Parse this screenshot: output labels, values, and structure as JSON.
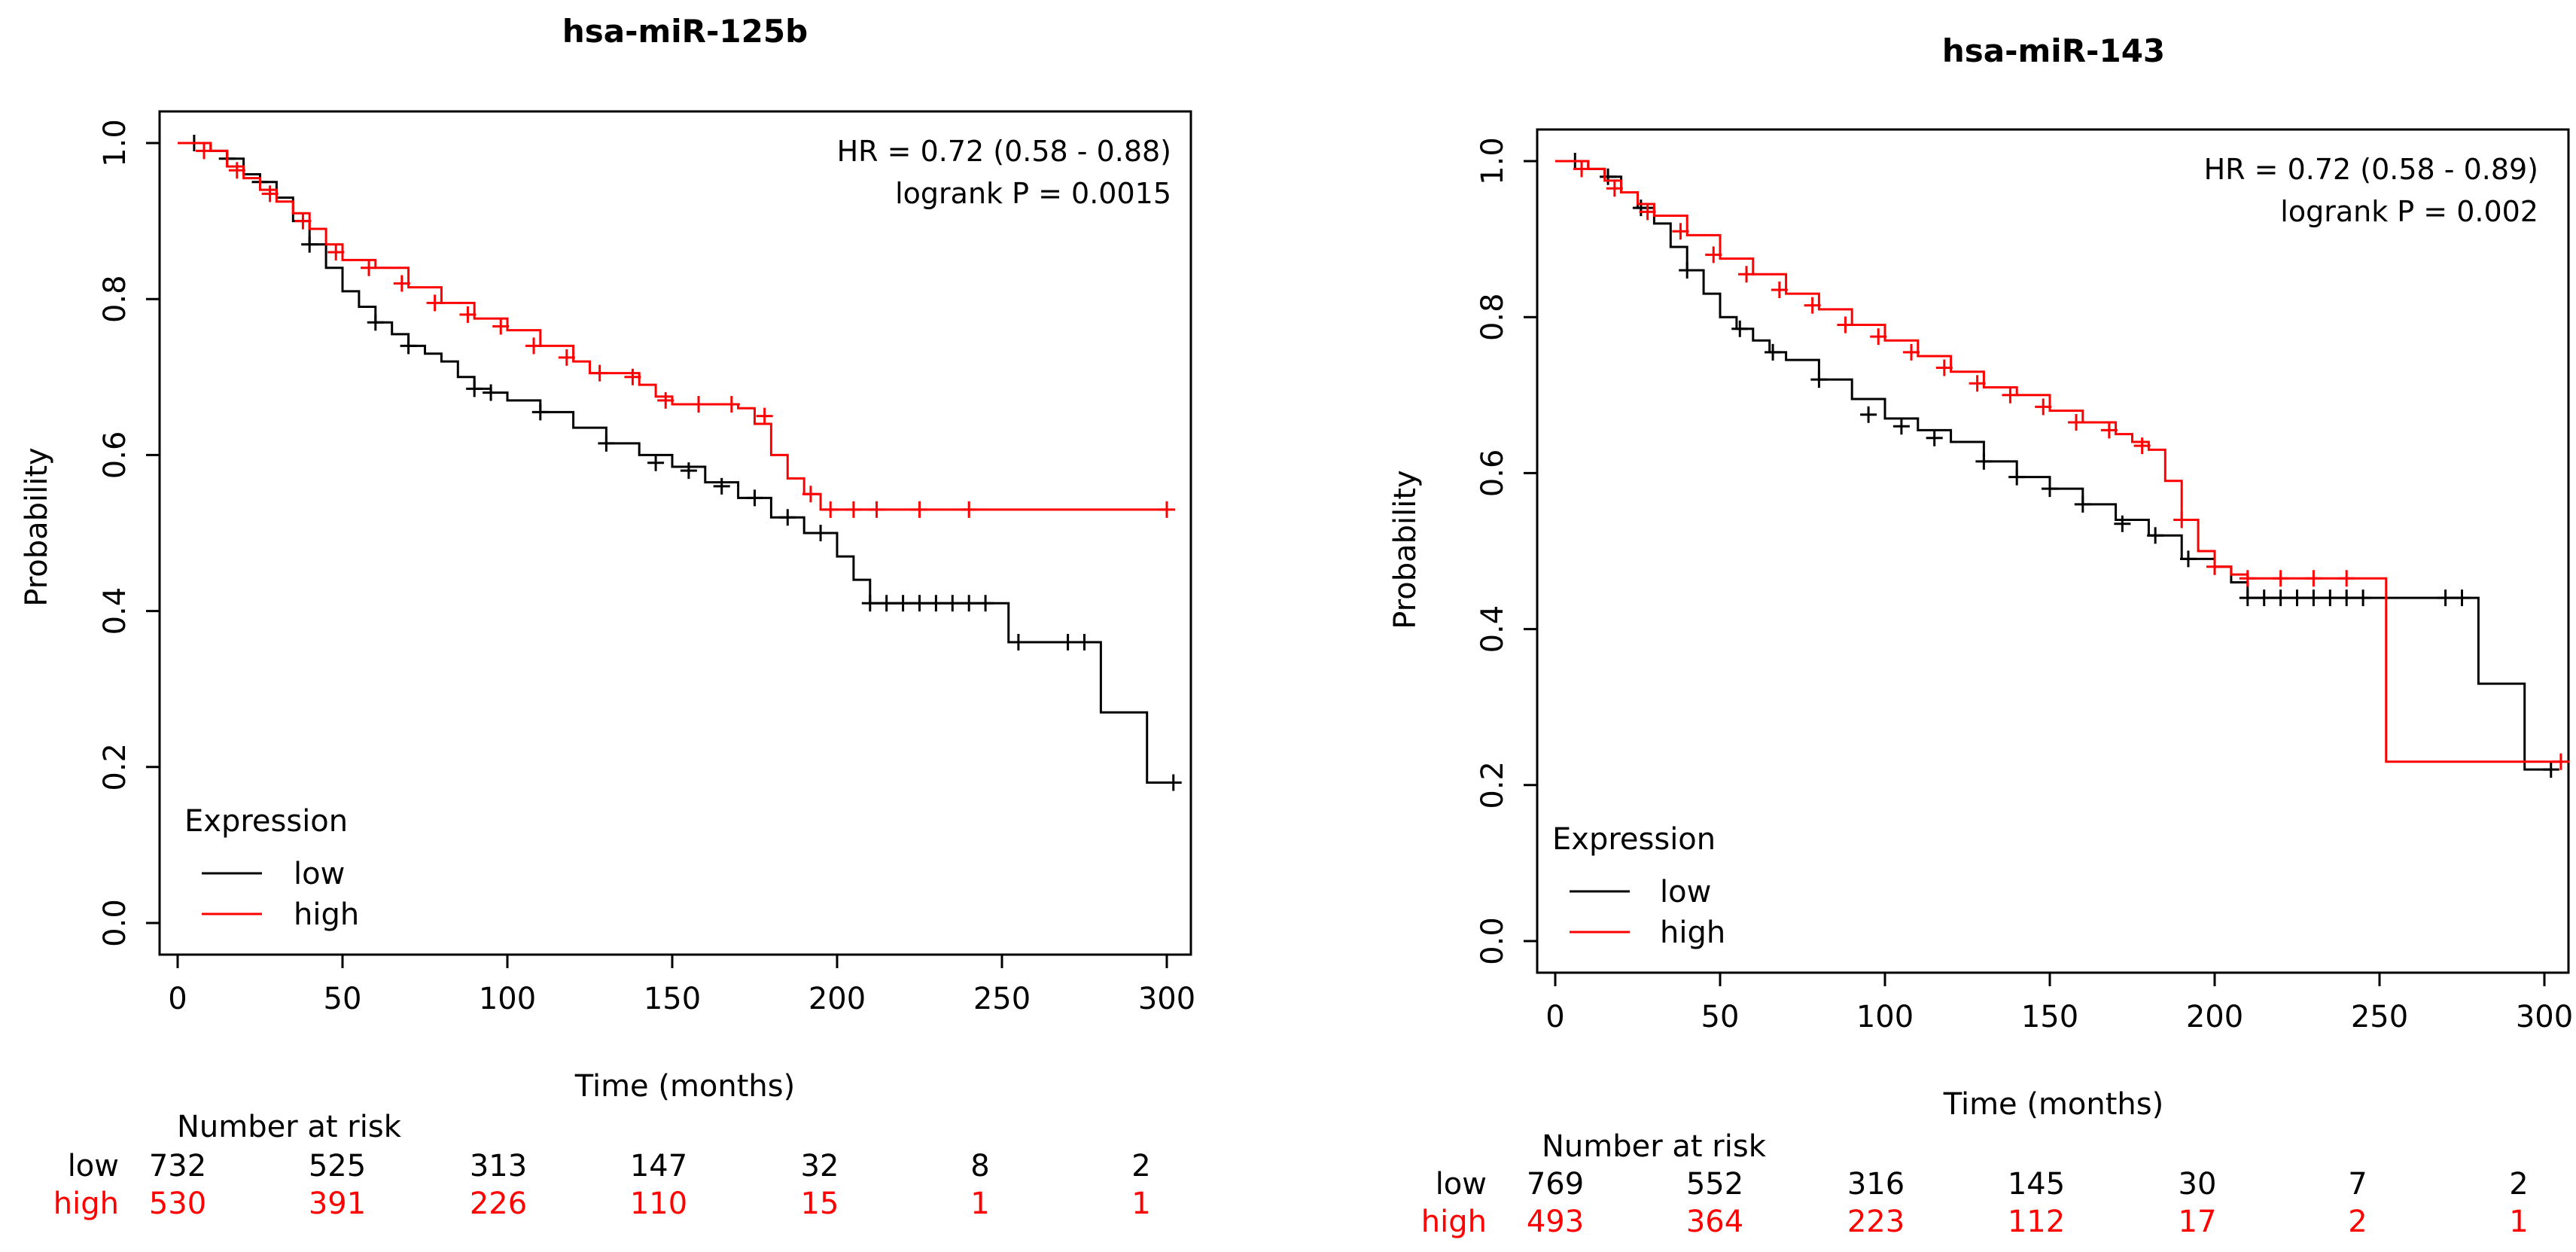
{
  "chart_data": [
    {
      "type": "line",
      "title": "hsa-miR-125b",
      "xlabel": "Time (months)",
      "ylabel": "Probability",
      "xlim": [
        0,
        310
      ],
      "ylim": [
        0,
        1
      ],
      "x_ticks": [
        0,
        50,
        100,
        150,
        200,
        250,
        300
      ],
      "y_ticks": [
        0.0,
        0.2,
        0.4,
        0.6,
        0.8,
        1.0
      ],
      "x_tick_labels": [
        "0",
        "50",
        "100",
        "150",
        "200",
        "250",
        "300"
      ],
      "y_tick_labels": [
        "0.0",
        "0.2",
        "0.4",
        "0.6",
        "0.8",
        "1.0"
      ],
      "annotation": {
        "hr": "HR = 0.72 (0.58 - 0.88)",
        "logrank": "logrank P = 0.0015"
      },
      "legend": {
        "title": "Expression",
        "position": "bottom-left",
        "entries": [
          "low",
          "high"
        ]
      },
      "series": [
        {
          "name": "low",
          "color": "#000000",
          "x": [
            0,
            5,
            10,
            15,
            20,
            25,
            30,
            35,
            40,
            45,
            50,
            55,
            60,
            65,
            70,
            75,
            80,
            85,
            90,
            95,
            100,
            110,
            120,
            130,
            140,
            150,
            160,
            170,
            180,
            190,
            200,
            205,
            210,
            250,
            252,
            278,
            280,
            294,
            302
          ],
          "y": [
            1.0,
            1.0,
            0.99,
            0.98,
            0.96,
            0.95,
            0.93,
            0.9,
            0.87,
            0.84,
            0.81,
            0.79,
            0.77,
            0.755,
            0.74,
            0.73,
            0.72,
            0.7,
            0.685,
            0.68,
            0.67,
            0.655,
            0.635,
            0.615,
            0.6,
            0.585,
            0.565,
            0.545,
            0.52,
            0.5,
            0.47,
            0.44,
            0.41,
            0.41,
            0.36,
            0.36,
            0.27,
            0.18,
            0.18
          ],
          "censor_x": [
            5,
            15,
            25,
            40,
            60,
            70,
            90,
            95,
            110,
            130,
            145,
            155,
            165,
            175,
            185,
            195,
            210,
            215,
            220,
            225,
            230,
            235,
            240,
            245,
            255,
            270,
            275,
            302
          ],
          "censor_y": [
            1.0,
            0.98,
            0.95,
            0.87,
            0.77,
            0.74,
            0.685,
            0.68,
            0.655,
            0.615,
            0.59,
            0.58,
            0.56,
            0.545,
            0.52,
            0.5,
            0.41,
            0.41,
            0.41,
            0.41,
            0.41,
            0.41,
            0.41,
            0.41,
            0.36,
            0.36,
            0.36,
            0.18
          ]
        },
        {
          "name": "high",
          "color": "#ff0000",
          "x": [
            0,
            5,
            10,
            15,
            20,
            25,
            30,
            35,
            40,
            45,
            50,
            60,
            70,
            80,
            90,
            100,
            110,
            120,
            125,
            130,
            140,
            145,
            150,
            160,
            170,
            175,
            180,
            185,
            190,
            195,
            300
          ],
          "y": [
            1.0,
            1.0,
            0.99,
            0.97,
            0.955,
            0.94,
            0.925,
            0.91,
            0.89,
            0.87,
            0.85,
            0.84,
            0.815,
            0.795,
            0.775,
            0.76,
            0.74,
            0.72,
            0.705,
            0.705,
            0.69,
            0.675,
            0.665,
            0.665,
            0.66,
            0.64,
            0.6,
            0.57,
            0.55,
            0.53,
            0.53
          ],
          "censor_x": [
            8,
            18,
            28,
            38,
            48,
            58,
            68,
            78,
            88,
            98,
            108,
            118,
            128,
            138,
            148,
            158,
            168,
            178,
            192,
            198,
            205,
            212,
            225,
            240,
            300
          ],
          "censor_y": [
            0.99,
            0.965,
            0.935,
            0.9,
            0.86,
            0.84,
            0.82,
            0.795,
            0.78,
            0.765,
            0.74,
            0.725,
            0.705,
            0.7,
            0.67,
            0.665,
            0.665,
            0.65,
            0.55,
            0.53,
            0.53,
            0.53,
            0.53,
            0.53,
            0.53
          ]
        }
      ],
      "risk_table": {
        "title": "Number at risk",
        "times": [
          0,
          50,
          100,
          150,
          200,
          250,
          300
        ],
        "rows": [
          {
            "label": "low",
            "color": "#000000",
            "values": [
              "732",
              "525",
              "313",
              "147",
              "32",
              "8",
              "2"
            ]
          },
          {
            "label": "high",
            "color": "#ff0000",
            "values": [
              "530",
              "391",
              "226",
              "110",
              "15",
              "1",
              "1"
            ]
          }
        ]
      }
    },
    {
      "type": "line",
      "title": "hsa-miR-143",
      "xlabel": "Time (months)",
      "ylabel": "Probability",
      "xlim": [
        0,
        310
      ],
      "ylim": [
        0,
        1
      ],
      "x_ticks": [
        0,
        50,
        100,
        150,
        200,
        250,
        300
      ],
      "y_ticks": [
        0.0,
        0.2,
        0.4,
        0.6,
        0.8,
        1.0
      ],
      "x_tick_labels": [
        "0",
        "50",
        "100",
        "150",
        "200",
        "250",
        "300"
      ],
      "y_tick_labels": [
        "0.0",
        "0.2",
        "0.4",
        "0.6",
        "0.8",
        "1.0"
      ],
      "annotation": {
        "hr": "HR = 0.72 (0.58 - 0.89)",
        "logrank": "logrank P = 0.002"
      },
      "legend": {
        "title": "Expression",
        "position": "bottom-left",
        "entries": [
          "low",
          "high"
        ]
      },
      "series": [
        {
          "name": "low",
          "color": "#000000",
          "x": [
            0,
            5,
            10,
            15,
            20,
            25,
            30,
            35,
            40,
            45,
            50,
            55,
            60,
            65,
            70,
            80,
            90,
            100,
            110,
            120,
            130,
            140,
            150,
            160,
            170,
            180,
            190,
            200,
            205,
            210,
            278,
            280,
            294,
            302
          ],
          "y": [
            1.0,
            1.0,
            0.99,
            0.98,
            0.96,
            0.94,
            0.92,
            0.89,
            0.86,
            0.83,
            0.8,
            0.785,
            0.77,
            0.755,
            0.745,
            0.72,
            0.695,
            0.67,
            0.655,
            0.64,
            0.615,
            0.595,
            0.58,
            0.56,
            0.54,
            0.52,
            0.49,
            0.48,
            0.46,
            0.44,
            0.44,
            0.33,
            0.22,
            0.22
          ],
          "censor_x": [
            6,
            16,
            26,
            40,
            56,
            66,
            80,
            95,
            105,
            115,
            130,
            140,
            150,
            160,
            172,
            182,
            192,
            210,
            215,
            220,
            225,
            230,
            235,
            240,
            245,
            270,
            275,
            302
          ],
          "censor_y": [
            1.0,
            0.98,
            0.94,
            0.86,
            0.785,
            0.755,
            0.72,
            0.675,
            0.66,
            0.645,
            0.615,
            0.595,
            0.58,
            0.56,
            0.535,
            0.52,
            0.49,
            0.44,
            0.44,
            0.44,
            0.44,
            0.44,
            0.44,
            0.44,
            0.44,
            0.44,
            0.44,
            0.22
          ]
        },
        {
          "name": "high",
          "color": "#ff0000",
          "x": [
            0,
            5,
            10,
            15,
            20,
            25,
            30,
            40,
            50,
            60,
            70,
            80,
            90,
            100,
            110,
            120,
            130,
            140,
            150,
            160,
            170,
            175,
            180,
            185,
            190,
            195,
            200,
            205,
            210,
            250,
            252,
            300,
            305
          ],
          "y": [
            1.0,
            1.0,
            0.99,
            0.975,
            0.96,
            0.945,
            0.93,
            0.905,
            0.875,
            0.855,
            0.83,
            0.81,
            0.79,
            0.77,
            0.75,
            0.73,
            0.71,
            0.7,
            0.68,
            0.665,
            0.65,
            0.64,
            0.63,
            0.59,
            0.54,
            0.5,
            0.48,
            0.47,
            0.465,
            0.465,
            0.23,
            0.23,
            0.23
          ],
          "censor_x": [
            8,
            18,
            28,
            38,
            48,
            58,
            68,
            78,
            88,
            98,
            108,
            118,
            128,
            138,
            148,
            158,
            168,
            178,
            190,
            200,
            210,
            220,
            230,
            240,
            305
          ],
          "censor_y": [
            0.99,
            0.965,
            0.935,
            0.91,
            0.88,
            0.855,
            0.835,
            0.815,
            0.79,
            0.775,
            0.755,
            0.735,
            0.715,
            0.7,
            0.685,
            0.665,
            0.655,
            0.635,
            0.54,
            0.48,
            0.465,
            0.465,
            0.465,
            0.465,
            0.23
          ]
        }
      ],
      "risk_table": {
        "title": "Number at risk",
        "times": [
          0,
          50,
          100,
          150,
          200,
          250,
          300
        ],
        "rows": [
          {
            "label": "low",
            "color": "#000000",
            "values": [
              "769",
              "552",
              "316",
              "145",
              "30",
              "7",
              "2"
            ]
          },
          {
            "label": "high",
            "color": "#ff0000",
            "values": [
              "493",
              "364",
              "223",
              "112",
              "17",
              "2",
              "1"
            ]
          }
        ]
      }
    }
  ]
}
